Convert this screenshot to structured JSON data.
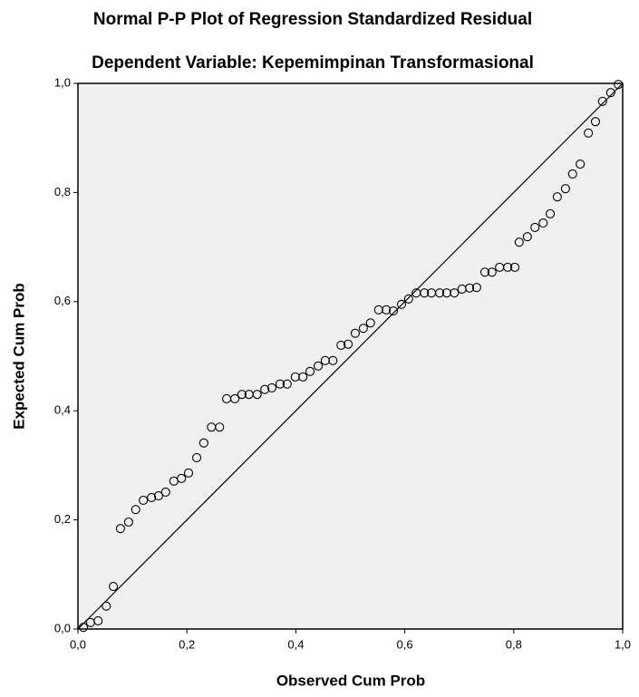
{
  "chart_data": {
    "type": "scatter",
    "title": "Normal P-P Plot of Regression Standardized Residual",
    "subtitle": "Dependent Variable: Kepemimpinan Transformasional",
    "x_label": "Observed Cum Prob",
    "y_label": "Expected Cum Prob",
    "xlim": [
      0,
      1
    ],
    "ylim": [
      0,
      1
    ],
    "xticks": [
      {
        "value": 0,
        "label": "0,0"
      },
      {
        "value": 0.2,
        "label": "0,2"
      },
      {
        "value": 0.4,
        "label": "0,4"
      },
      {
        "value": 0.6,
        "label": "0,6"
      },
      {
        "value": 0.8,
        "label": "0,8"
      },
      {
        "value": 1,
        "label": "1,0"
      }
    ],
    "yticks": [
      {
        "value": 0,
        "label": "0,0"
      },
      {
        "value": 0.2,
        "label": "0,2"
      },
      {
        "value": 0.4,
        "label": "0,4"
      },
      {
        "value": 0.6,
        "label": "0,6"
      },
      {
        "value": 0.8,
        "label": "0,8"
      },
      {
        "value": 1,
        "label": "1,0"
      }
    ],
    "color": "#000000",
    "background": "#f0f0f0",
    "x": [
      0.01,
      0.023,
      0.037,
      0.052,
      0.065,
      0.078,
      0.093,
      0.106,
      0.12,
      0.135,
      0.148,
      0.161,
      0.176,
      0.19,
      0.203,
      0.218,
      0.231,
      0.245,
      0.26,
      0.273,
      0.288,
      0.301,
      0.314,
      0.329,
      0.343,
      0.356,
      0.371,
      0.384,
      0.399,
      0.413,
      0.426,
      0.441,
      0.454,
      0.468,
      0.483,
      0.496,
      0.509,
      0.524,
      0.537,
      0.552,
      0.566,
      0.579,
      0.594,
      0.607,
      0.621,
      0.636,
      0.649,
      0.664,
      0.677,
      0.691,
      0.705,
      0.719,
      0.732,
      0.747,
      0.76,
      0.774,
      0.789,
      0.802,
      0.81,
      0.825,
      0.839,
      0.854,
      0.867,
      0.88,
      0.895,
      0.908,
      0.922,
      0.937,
      0.95,
      0.963,
      0.978,
      0.992
    ],
    "values": [
      0.003,
      0.012,
      0.015,
      0.042,
      0.078,
      0.184,
      0.196,
      0.219,
      0.236,
      0.241,
      0.244,
      0.251,
      0.271,
      0.276,
      0.286,
      0.314,
      0.341,
      0.37,
      0.37,
      0.422,
      0.422,
      0.43,
      0.43,
      0.43,
      0.439,
      0.442,
      0.449,
      0.449,
      0.462,
      0.462,
      0.472,
      0.482,
      0.492,
      0.492,
      0.52,
      0.522,
      0.542,
      0.551,
      0.561,
      0.585,
      0.585,
      0.583,
      0.595,
      0.605,
      0.616,
      0.616,
      0.616,
      0.616,
      0.616,
      0.616,
      0.623,
      0.625,
      0.626,
      0.654,
      0.654,
      0.663,
      0.663,
      0.663,
      0.709,
      0.719,
      0.736,
      0.744,
      0.761,
      0.792,
      0.807,
      0.834,
      0.852,
      0.909,
      0.93,
      0.967,
      0.983,
      0.998
    ]
  }
}
